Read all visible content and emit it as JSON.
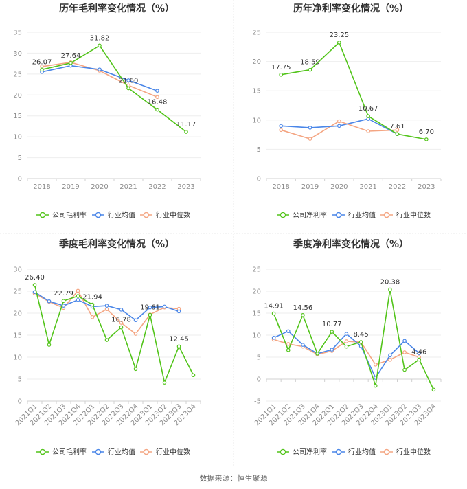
{
  "colors": {
    "company": "#52c41a",
    "industry_avg": "#4a86e8",
    "industry_median": "#f4a582"
  },
  "source": "数据来源：恒生聚源",
  "chart_data": [
    {
      "type": "line",
      "title": "历年毛利率变化情况（%）",
      "categories": [
        "2018",
        "2019",
        "2020",
        "2021",
        "2022",
        "2023"
      ],
      "ylim": [
        0,
        35
      ],
      "yticks": [
        0,
        5,
        10,
        15,
        20,
        25,
        30,
        35
      ],
      "grid": true,
      "legend_position": "bottom",
      "series": [
        {
          "name": "公司毛利率",
          "color_key": "company",
          "values": [
            26.07,
            27.64,
            31.82,
            21.6,
            16.48,
            11.17
          ],
          "labels": [
            "26.07",
            "27.64",
            "31.82",
            "21.60",
            "16.48",
            "11.17"
          ]
        },
        {
          "name": "行业均值",
          "color_key": "industry_avg",
          "values": [
            25.5,
            27.0,
            26.1,
            23.5,
            21.0,
            null
          ]
        },
        {
          "name": "行业中位数",
          "color_key": "industry_median",
          "values": [
            26.8,
            27.8,
            25.8,
            22.3,
            19.5,
            null
          ]
        }
      ]
    },
    {
      "type": "line",
      "title": "历年净利率变化情况（%）",
      "categories": [
        "2018",
        "2019",
        "2020",
        "2021",
        "2022",
        "2023"
      ],
      "ylim": [
        0,
        25
      ],
      "yticks": [
        0,
        5,
        10,
        15,
        20,
        25
      ],
      "grid": true,
      "legend_position": "bottom",
      "series": [
        {
          "name": "公司净利率",
          "color_key": "company",
          "values": [
            17.75,
            18.59,
            23.25,
            10.67,
            7.61,
            6.7
          ],
          "labels": [
            "17.75",
            "18.59",
            "23.25",
            "10.67",
            "7.61",
            "6.70"
          ]
        },
        {
          "name": "行业均值",
          "color_key": "industry_avg",
          "values": [
            9.0,
            8.7,
            9.0,
            10.2,
            7.6,
            null
          ]
        },
        {
          "name": "行业中位数",
          "color_key": "industry_median",
          "values": [
            8.3,
            6.8,
            9.8,
            8.1,
            8.3,
            null
          ]
        }
      ]
    },
    {
      "type": "line",
      "title": "季度毛利率变化情况（%）",
      "categories": [
        "2021Q1",
        "2021Q2",
        "2021Q3",
        "2021Q4",
        "2022Q1",
        "2022Q2",
        "2022Q3",
        "2022Q4",
        "2023Q1",
        "2023Q2",
        "2023Q3",
        "2023Q4"
      ],
      "ylim": [
        0,
        30
      ],
      "yticks": [
        0,
        5,
        10,
        15,
        20,
        25,
        30
      ],
      "grid": true,
      "legend_position": "bottom",
      "series": [
        {
          "name": "公司毛利率",
          "color_key": "company",
          "values": [
            26.4,
            12.8,
            22.79,
            23.9,
            21.94,
            13.9,
            16.78,
            7.3,
            19.61,
            4.2,
            12.45,
            5.9
          ],
          "labels": [
            "26.40",
            "",
            "22.79",
            "",
            "21.94",
            "",
            "16.78",
            "",
            "19.61",
            "",
            "12.45",
            ""
          ]
        },
        {
          "name": "行业均值",
          "color_key": "industry_avg",
          "values": [
            24.8,
            22.7,
            21.7,
            23.0,
            21.5,
            21.7,
            20.8,
            18.4,
            21.3,
            21.5,
            20.4,
            null
          ]
        },
        {
          "name": "行业中位数",
          "color_key": "industry_median",
          "values": [
            24.5,
            22.6,
            21.2,
            25.1,
            19.1,
            20.9,
            17.8,
            15.3,
            19.7,
            21.3,
            21.0,
            null
          ]
        }
      ]
    },
    {
      "type": "line",
      "title": "季度净利率变化情况（%）",
      "categories": [
        "2021Q1",
        "2021Q2",
        "2021Q3",
        "2021Q4",
        "2022Q1",
        "2022Q2",
        "2022Q3",
        "2022Q4",
        "2023Q1",
        "2023Q2",
        "2023Q3",
        "2023Q4"
      ],
      "ylim": [
        -5,
        25
      ],
      "yticks": [
        -5,
        0,
        5,
        10,
        15,
        20,
        25
      ],
      "grid": true,
      "legend_position": "bottom",
      "series": [
        {
          "name": "公司净利率",
          "color_key": "company",
          "values": [
            14.91,
            6.6,
            14.56,
            5.8,
            10.77,
            7.4,
            8.45,
            -1.5,
            20.38,
            2.1,
            4.46,
            -2.4
          ],
          "labels": [
            "14.91",
            "",
            "14.56",
            "",
            "10.77",
            "",
            "8.45",
            "",
            "20.38",
            "",
            "4.46",
            ""
          ]
        },
        {
          "name": "行业均值",
          "color_key": "industry_avg",
          "values": [
            9.4,
            10.9,
            7.8,
            5.8,
            6.7,
            10.3,
            7.5,
            0.3,
            5.4,
            8.7,
            5.9,
            null
          ]
        },
        {
          "name": "行业中位数",
          "color_key": "industry_median",
          "values": [
            9.0,
            8.0,
            7.4,
            5.6,
            6.4,
            8.6,
            8.4,
            3.3,
            4.4,
            6.1,
            5.0,
            null
          ]
        }
      ]
    }
  ]
}
